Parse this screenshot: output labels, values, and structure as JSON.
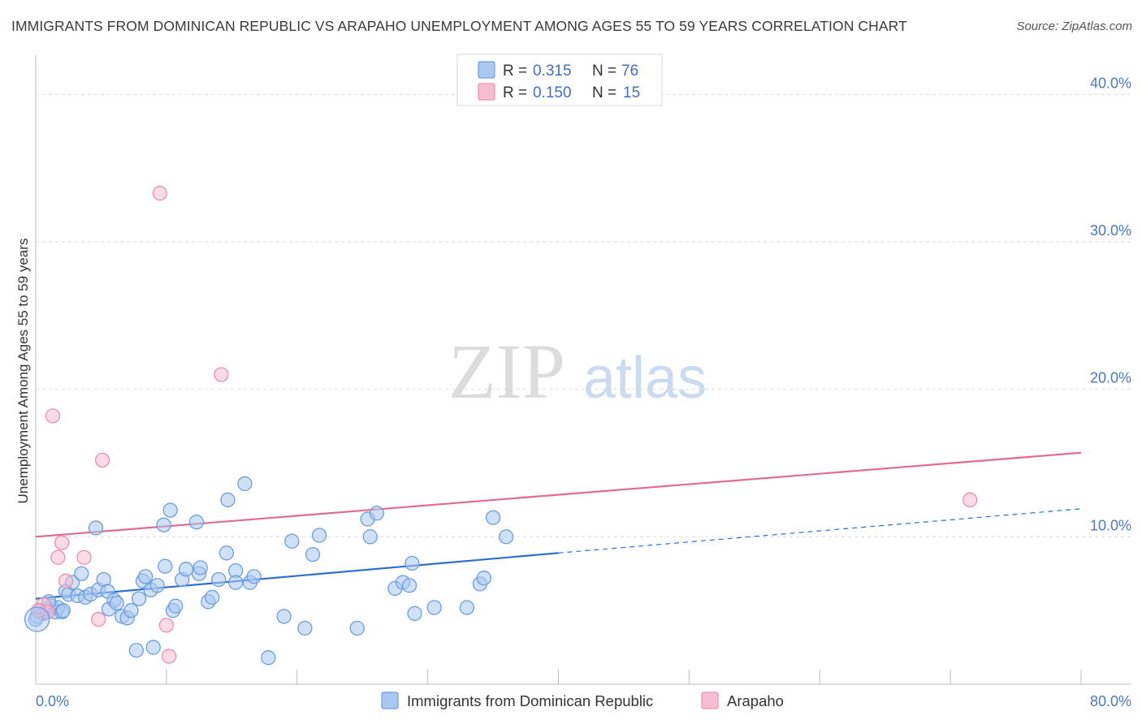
{
  "header": {
    "title": "IMMIGRANTS FROM DOMINICAN REPUBLIC VS ARAPAHO UNEMPLOYMENT AMONG AGES 55 TO 59 YEARS CORRELATION CHART",
    "source": "Source: ZipAtlas.com"
  },
  "watermark": {
    "zip": "ZIP",
    "atlas": "atlas"
  },
  "colors": {
    "blue_fill": "#a9c8f0",
    "blue_stroke": "#6a9ee0",
    "blue_line": "#2a6fd0",
    "pink_fill": "#f6bcd0",
    "pink_stroke": "#eb8fb0",
    "pink_line": "#e06b94",
    "tick_text": "#4a78c2",
    "grid": "#dddddd"
  },
  "legend": {
    "r_label": "R =",
    "n_label": "N =",
    "items": [
      {
        "r": "0.315",
        "n": "76"
      },
      {
        "r": "0.150",
        "n": "15"
      }
    ]
  },
  "chart_data": {
    "type": "scatter",
    "title": "IMMIGRANTS FROM DOMINICAN REPUBLIC VS ARAPAHO UNEMPLOYMENT AMONG AGES 55 TO 59 YEARS CORRELATION CHART",
    "xlabel": "",
    "ylabel": "Unemployment Among Ages 55 to 59 years",
    "xlim": [
      0,
      80
    ],
    "ylim": [
      0,
      42
    ],
    "x_tick_labels": [
      "0.0%",
      "80.0%"
    ],
    "y_ticks": [
      10,
      20,
      30,
      40
    ],
    "y_tick_labels": [
      "10.0%",
      "20.0%",
      "30.0%",
      "40.0%"
    ],
    "grid": true,
    "legend_position": "top-center",
    "series": [
      {
        "name": "Immigrants from Dominican Republic",
        "r": 0.315,
        "n": 76,
        "points": [
          [
            0.1,
            4.6
          ],
          [
            0.4,
            5.0
          ],
          [
            0.6,
            4.8
          ],
          [
            0.9,
            5.1
          ],
          [
            1.2,
            5.3
          ],
          [
            1.5,
            4.9
          ],
          [
            1.7,
            5.2
          ],
          [
            2.0,
            4.9
          ],
          [
            2.3,
            6.3
          ],
          [
            2.5,
            6.1
          ],
          [
            2.8,
            6.9
          ],
          [
            3.2,
            6.0
          ],
          [
            3.5,
            7.5
          ],
          [
            3.8,
            5.9
          ],
          [
            4.2,
            6.1
          ],
          [
            4.6,
            10.6
          ],
          [
            4.8,
            6.4
          ],
          [
            5.2,
            7.1
          ],
          [
            5.5,
            6.3
          ],
          [
            5.6,
            5.1
          ],
          [
            6.0,
            5.7
          ],
          [
            6.2,
            5.5
          ],
          [
            6.6,
            4.6
          ],
          [
            7.0,
            4.5
          ],
          [
            7.3,
            5.0
          ],
          [
            7.9,
            5.8
          ],
          [
            8.2,
            7.0
          ],
          [
            8.4,
            7.3
          ],
          [
            8.8,
            6.4
          ],
          [
            9.3,
            6.7
          ],
          [
            9.8,
            10.8
          ],
          [
            9.9,
            8.0
          ],
          [
            10.3,
            11.8
          ],
          [
            10.5,
            5.0
          ],
          [
            10.7,
            5.3
          ],
          [
            11.2,
            7.1
          ],
          [
            11.5,
            7.8
          ],
          [
            12.3,
            11.0
          ],
          [
            12.5,
            7.5
          ],
          [
            12.6,
            7.9
          ],
          [
            13.2,
            5.6
          ],
          [
            13.5,
            5.9
          ],
          [
            14.0,
            7.1
          ],
          [
            14.6,
            8.9
          ],
          [
            14.7,
            12.5
          ],
          [
            15.3,
            7.7
          ],
          [
            15.3,
            6.9
          ],
          [
            16.4,
            6.9
          ],
          [
            16.7,
            7.3
          ],
          [
            16.0,
            13.6
          ],
          [
            17.8,
            1.8
          ],
          [
            19.0,
            4.6
          ],
          [
            19.6,
            9.7
          ],
          [
            20.6,
            3.8
          ],
          [
            21.2,
            8.8
          ],
          [
            21.7,
            10.1
          ],
          [
            24.6,
            3.8
          ],
          [
            25.4,
            11.2
          ],
          [
            25.6,
            10.0
          ],
          [
            26.1,
            11.6
          ],
          [
            27.5,
            6.5
          ],
          [
            28.1,
            6.9
          ],
          [
            28.6,
            6.7
          ],
          [
            28.8,
            8.2
          ],
          [
            29.0,
            4.8
          ],
          [
            30.5,
            5.2
          ],
          [
            33.0,
            5.2
          ],
          [
            34.0,
            6.8
          ],
          [
            34.3,
            7.2
          ],
          [
            35.0,
            11.3
          ],
          [
            36.0,
            10.0
          ],
          [
            7.7,
            2.3
          ],
          [
            9.0,
            2.5
          ],
          [
            2.1,
            5.0
          ],
          [
            1.0,
            5.6
          ],
          [
            0.0,
            4.4
          ]
        ],
        "trend": {
          "x0": 0,
          "y0": 5.8,
          "x1": 40,
          "y1": 8.9,
          "dashed_to_x": 80,
          "dashed_to_y": 11.9
        }
      },
      {
        "name": "Arapaho",
        "r": 0.15,
        "n": 15,
        "points": [
          [
            0.6,
            5.4
          ],
          [
            0.9,
            4.9
          ],
          [
            1.3,
            18.2
          ],
          [
            1.7,
            8.6
          ],
          [
            2.0,
            9.6
          ],
          [
            2.3,
            7.0
          ],
          [
            3.7,
            8.6
          ],
          [
            4.8,
            4.4
          ],
          [
            5.1,
            15.2
          ],
          [
            9.5,
            33.3
          ],
          [
            10.0,
            4.0
          ],
          [
            10.2,
            1.9
          ],
          [
            14.2,
            21.0
          ],
          [
            71.5,
            12.5
          ],
          [
            0.2,
            5.0
          ]
        ],
        "trend": {
          "x0": 0,
          "y0": 10.0,
          "x1": 80,
          "y1": 15.7
        }
      }
    ]
  },
  "bottom_legend": {
    "items": [
      "Immigrants from Dominican Republic",
      "Arapaho"
    ]
  }
}
